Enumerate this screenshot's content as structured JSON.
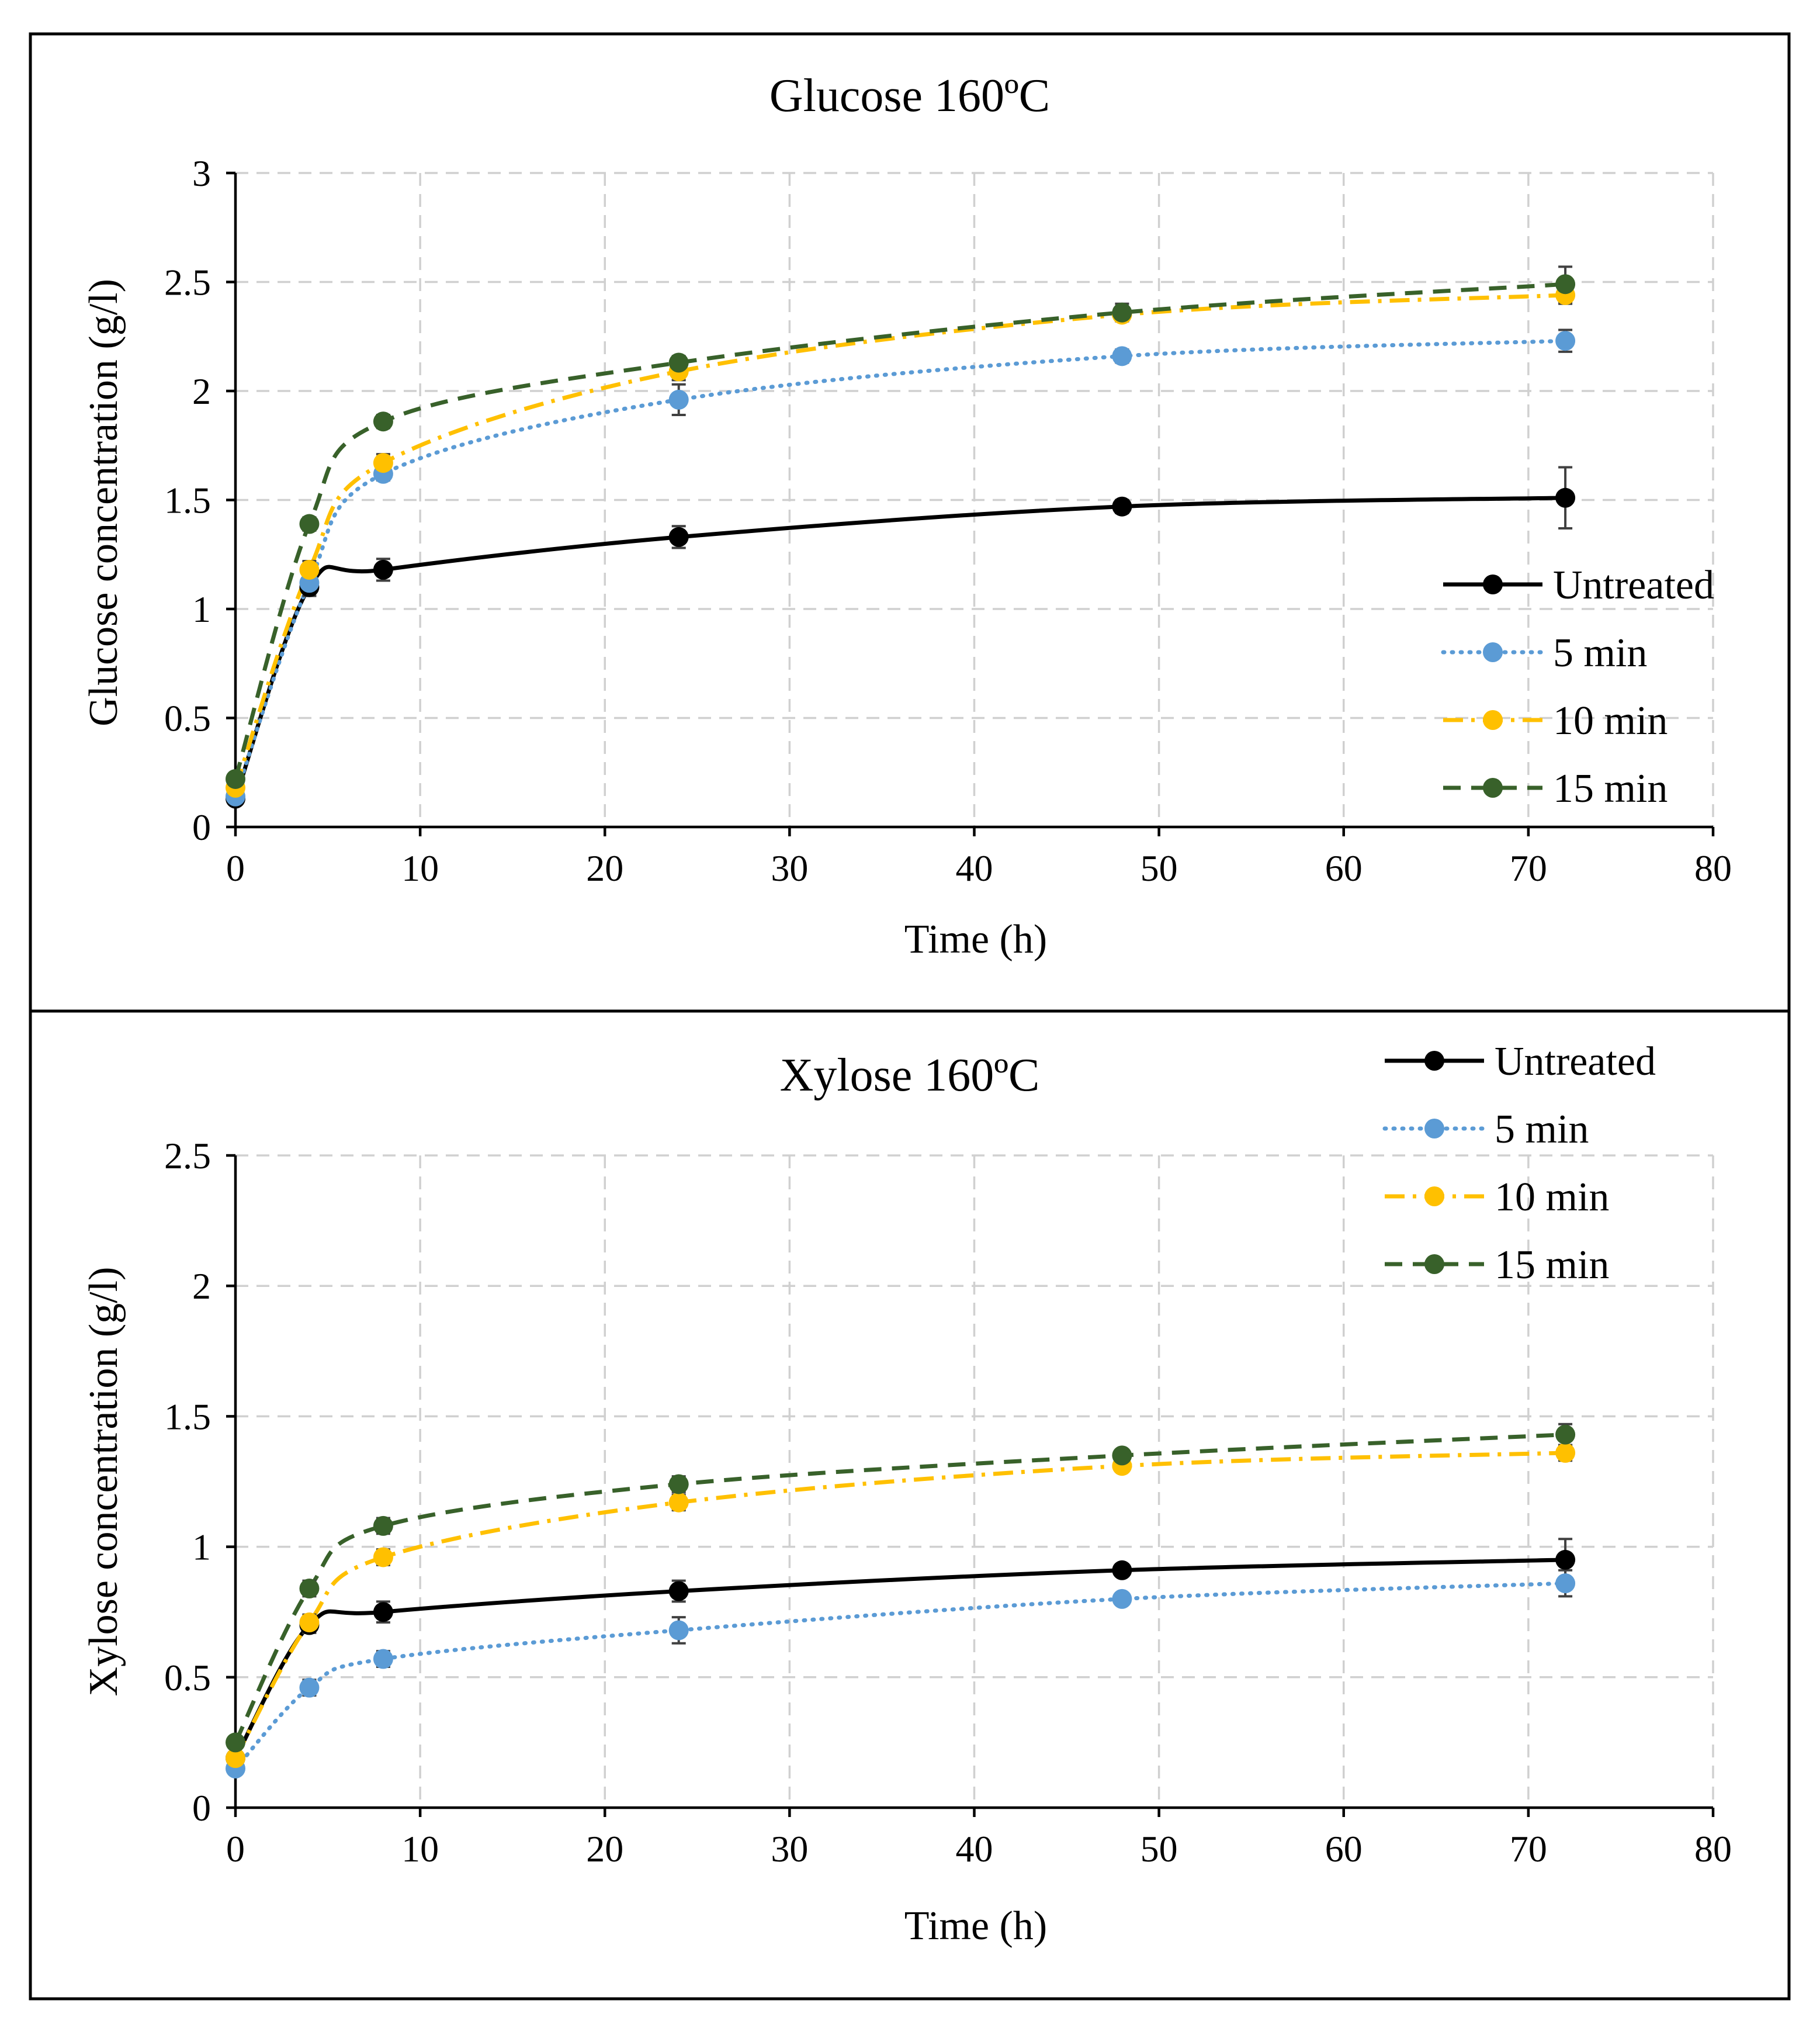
{
  "figure": {
    "background": "#ffffff",
    "series_styles": [
      {
        "name": "Untreated",
        "color": "#000000",
        "dash": "solid"
      },
      {
        "name": "5 min",
        "color": "#5b9bd5",
        "dash": "dotted"
      },
      {
        "name": "10 min",
        "color": "#ffc000",
        "dash": "dashdot"
      },
      {
        "name": "15 min",
        "color": "#38612a",
        "dash": "dashed"
      }
    ]
  },
  "chart_data": [
    {
      "type": "line",
      "title": "Glucose 160ºC",
      "xlabel": "Time (h)",
      "ylabel": "Glucose concentration (g/l)",
      "xlim": [
        0,
        80
      ],
      "ylim": [
        0,
        3
      ],
      "x_ticks": [
        0,
        10,
        20,
        30,
        40,
        50,
        60,
        70,
        80
      ],
      "x_tick_labels": [
        "0",
        "10",
        "20",
        "30",
        "40",
        "50",
        "60",
        "70",
        "80"
      ],
      "y_ticks": [
        0,
        0.5,
        1,
        1.5,
        2,
        2.5,
        3
      ],
      "y_tick_labels": [
        "0",
        "0.5",
        "1",
        "1.5",
        "2",
        "2.5",
        "3"
      ],
      "grid": true,
      "legend_position": "right",
      "x": [
        0,
        4,
        8,
        24,
        48,
        72
      ],
      "series": [
        {
          "name": "Untreated",
          "values": [
            0.13,
            1.1,
            1.18,
            1.33,
            1.47,
            1.51
          ],
          "errors": [
            0.02,
            0.04,
            0.05,
            0.05,
            0.03,
            0.14
          ]
        },
        {
          "name": "5 min",
          "values": [
            0.14,
            1.12,
            1.62,
            1.96,
            2.16,
            2.23
          ],
          "errors": [
            0.02,
            0.03,
            0.03,
            0.07,
            0.03,
            0.05
          ]
        },
        {
          "name": "10 min",
          "values": [
            0.18,
            1.18,
            1.67,
            2.09,
            2.35,
            2.44
          ],
          "errors": [
            0.02,
            0.04,
            0.04,
            0.04,
            0.03,
            0.04
          ]
        },
        {
          "name": "15 min",
          "values": [
            0.22,
            1.39,
            1.86,
            2.13,
            2.36,
            2.49
          ],
          "errors": [
            0.02,
            0.03,
            0.03,
            0.03,
            0.04,
            0.08
          ]
        }
      ]
    },
    {
      "type": "line",
      "title": "Xylose 160ºC",
      "xlabel": "Time (h)",
      "ylabel": "Xylose concentration (g/l)",
      "xlim": [
        0,
        80
      ],
      "ylim": [
        0,
        2.5
      ],
      "x_ticks": [
        0,
        10,
        20,
        30,
        40,
        50,
        60,
        70,
        80
      ],
      "x_tick_labels": [
        "0",
        "10",
        "20",
        "30",
        "40",
        "50",
        "60",
        "70",
        "80"
      ],
      "y_ticks": [
        0,
        0.5,
        1,
        1.5,
        2,
        2.5
      ],
      "y_tick_labels": [
        "0",
        "0.5",
        "1",
        "1.5",
        "2",
        "2.5"
      ],
      "grid": true,
      "legend_position": "top-right",
      "x": [
        0,
        4,
        8,
        24,
        48,
        72
      ],
      "series": [
        {
          "name": "Untreated",
          "values": [
            0.19,
            0.7,
            0.75,
            0.83,
            0.91,
            0.95
          ],
          "errors": [
            0.02,
            0.03,
            0.04,
            0.04,
            0.02,
            0.08
          ]
        },
        {
          "name": "5 min",
          "values": [
            0.15,
            0.46,
            0.57,
            0.68,
            0.8,
            0.86
          ],
          "errors": [
            0.02,
            0.03,
            0.03,
            0.05,
            0.02,
            0.05
          ]
        },
        {
          "name": "10 min",
          "values": [
            0.19,
            0.71,
            0.96,
            1.17,
            1.31,
            1.36
          ],
          "errors": [
            0.02,
            0.03,
            0.03,
            0.03,
            0.02,
            0.03
          ]
        },
        {
          "name": "15 min",
          "values": [
            0.25,
            0.84,
            1.08,
            1.24,
            1.35,
            1.43
          ],
          "errors": [
            0.02,
            0.03,
            0.03,
            0.03,
            0.02,
            0.04
          ]
        }
      ]
    }
  ]
}
